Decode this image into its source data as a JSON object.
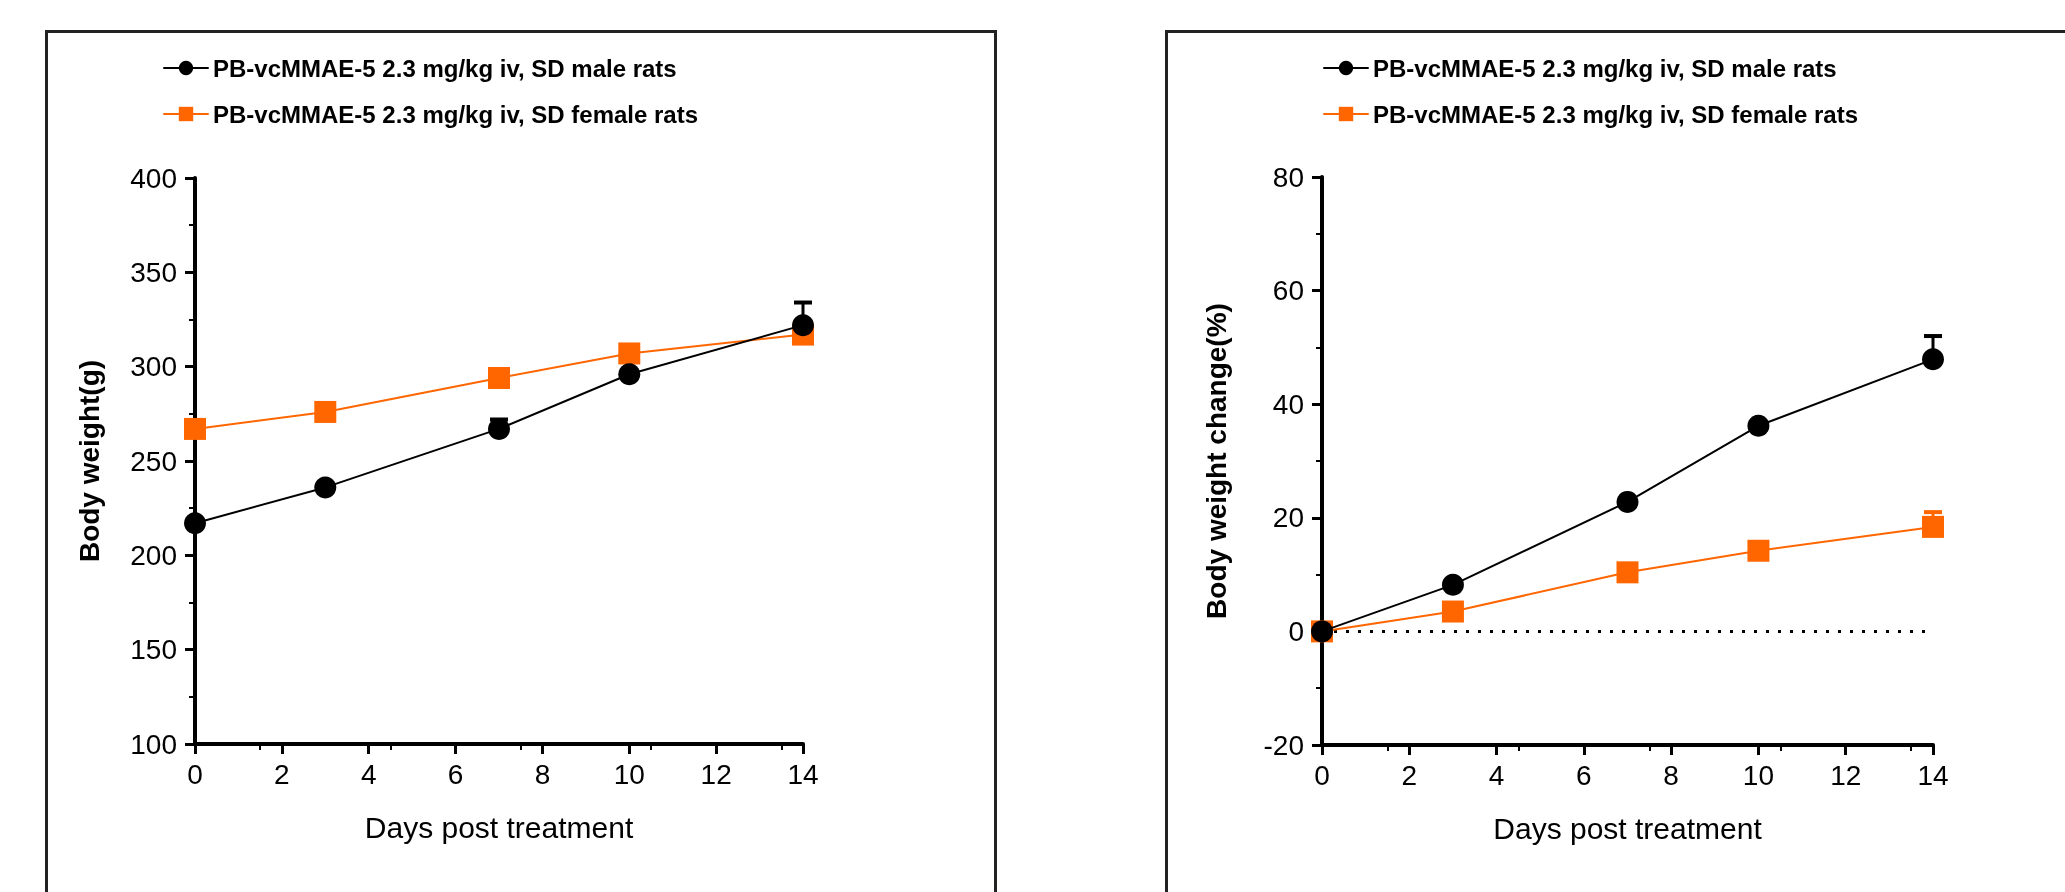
{
  "chart_data": [
    {
      "type": "line",
      "xlabel": "Days post treatment",
      "ylabel": "Body weight(g)",
      "x": [
        0,
        3,
        7,
        10,
        14
      ],
      "xlim": [
        0,
        14
      ],
      "xticks": [
        0,
        2,
        4,
        6,
        8,
        10,
        12,
        14
      ],
      "ylim": [
        100,
        400
      ],
      "yticks": [
        100,
        150,
        200,
        250,
        300,
        350,
        400
      ],
      "grid": false,
      "legend": "top",
      "series": [
        {
          "name": "PB-vcMMAE-5 2.3 mg/kg iv, SD male rats",
          "color": "#000000",
          "marker": "circle",
          "values": [
            217,
            236,
            267,
            296,
            322
          ],
          "errors": [
            null,
            null,
            [
              267,
              272
            ],
            null,
            [
              322,
              334
            ]
          ]
        },
        {
          "name": "PB-vcMMAE-5 2.3 mg/kg iv, SD female rats",
          "color": "#ff6600",
          "marker": "square",
          "values": [
            267,
            276,
            294,
            307,
            317
          ],
          "errors": [
            null,
            null,
            null,
            [
              307,
              311
            ],
            null
          ]
        }
      ]
    },
    {
      "type": "line",
      "xlabel": "Days post treatment",
      "ylabel": "Body weight change(%)",
      "x": [
        0,
        3,
        7,
        10,
        14
      ],
      "xlim": [
        0,
        14
      ],
      "xticks": [
        0,
        2,
        4,
        6,
        8,
        10,
        12,
        14
      ],
      "ylim": [
        -20,
        80
      ],
      "yticks": [
        -20,
        0,
        20,
        40,
        60,
        80
      ],
      "grid": false,
      "legend": "top",
      "ref_lines": [
        {
          "axis": "y",
          "value": 0,
          "line_style": "dotted",
          "color": "#000000"
        }
      ],
      "series": [
        {
          "name": "PB-vcMMAE-5 2.3 mg/kg iv, SD male rats",
          "color": "#000000",
          "marker": "circle",
          "values": [
            0,
            8.2,
            22.8,
            36.2,
            47.9
          ],
          "errors": [
            null,
            null,
            null,
            null,
            [
              47.9,
              52
            ]
          ]
        },
        {
          "name": "PB-vcMMAE-5 2.3 mg/kg iv, SD female rats",
          "color": "#ff6600",
          "marker": "square",
          "values": [
            0,
            3.5,
            10.4,
            14.2,
            18.4
          ],
          "errors": [
            null,
            null,
            null,
            null,
            [
              18.4,
              21
            ]
          ]
        }
      ]
    }
  ]
}
